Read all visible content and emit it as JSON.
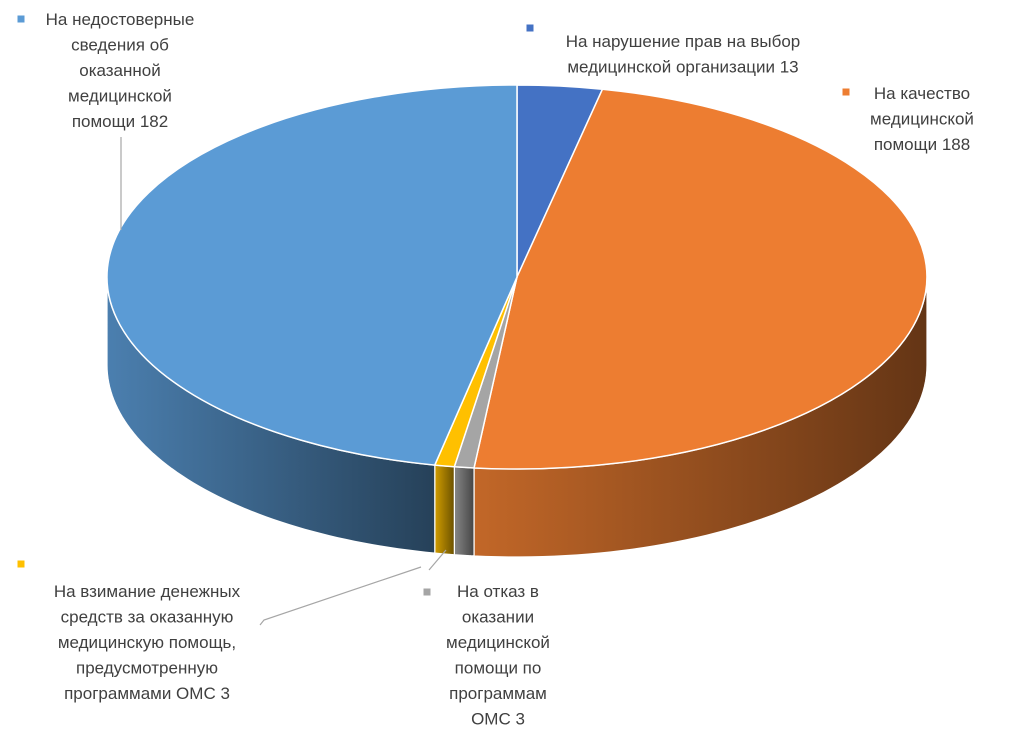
{
  "chart_data": {
    "type": "pie",
    "style": "3d",
    "legend": "none",
    "title": "",
    "slices": [
      {
        "label": "На нарушение прав на выбор медицинской организации 13",
        "category": "На нарушение прав на выбор медицинской организации",
        "value": 13,
        "color": "#4472C4"
      },
      {
        "label": "На качество медицинской помощи  188",
        "category": "На качество медицинской помощи",
        "value": 188,
        "color": "#ED7D31"
      },
      {
        "label": "На отказ в оказании медицинской помощи по программам ОМС 3",
        "category": "На отказ в оказании медицинской помощи по программам ОМС",
        "value": 3,
        "color": "#A5A5A5"
      },
      {
        "label": "На взимание денежных средств за оказанную медицинскую помощь, предусмотренную программами ОМС 3",
        "category": "На взимание денежных средств за оказанную медицинскую помощь, предусмотренную программами ОМС",
        "value": 3,
        "color": "#FFC000"
      },
      {
        "label": "На недостоверные сведения об оказанной медицинской помощи 182",
        "category": "На недостоверные сведения об оказанной медицинской помощи",
        "value": 182,
        "color": "#5B9BD5"
      }
    ]
  }
}
